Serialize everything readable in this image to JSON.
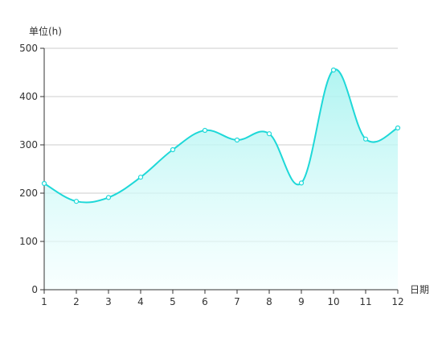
{
  "chart_data": {
    "type": "area",
    "ylabel": "单位(h)",
    "xlabel": "日期",
    "x": [
      "1",
      "2",
      "3",
      "4",
      "5",
      "6",
      "7",
      "8",
      "9",
      "10",
      "11",
      "12"
    ],
    "values": [
      220,
      183,
      191,
      233,
      290,
      330,
      310,
      323,
      221,
      455,
      312,
      335
    ],
    "ylim": [
      0,
      500
    ],
    "yticks": [
      "0",
      "100",
      "200",
      "300",
      "400",
      "500"
    ],
    "grid": true,
    "smooth": true,
    "colors": {
      "line": "#1ed8d8",
      "area_top": "#a8f3f0",
      "area_bottom": "#f3ffff",
      "grid": "#cccccc",
      "axis": "#333333"
    }
  }
}
